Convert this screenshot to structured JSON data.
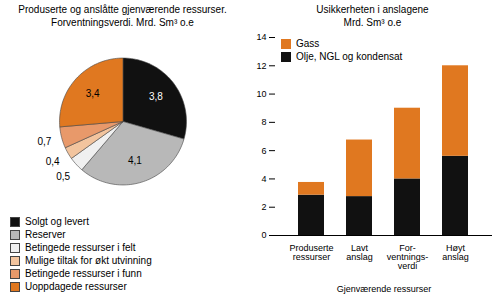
{
  "chart_data": [
    {
      "type": "pie",
      "title": "Produserte og anslåtte gjenværende ressurser.",
      "subtitle": "Forventningsverdi. Mrd. Sm³ o.e",
      "categories": [
        "Solgt og levert",
        "Reserver",
        "Betingede ressurser i felt",
        "Mulige tiltak for økt utvinning",
        "Betingede ressurser i funn",
        "Uoppdagede ressurser"
      ],
      "values": [
        3.8,
        4.1,
        0.5,
        0.4,
        0.7,
        3.4
      ],
      "value_labels": [
        "3,8",
        "4,1",
        "0,5",
        "0,4",
        "0,7",
        "3,4"
      ],
      "colors": [
        "#111111",
        "#b8b8b8",
        "#f0f0f0",
        "#f2c49e",
        "#e8996a",
        "#e07820"
      ],
      "data_labels": true,
      "legend": "bottom"
    },
    {
      "type": "bar",
      "title": "Usikkerheten i anslagene",
      "subtitle": "Mrd. Sm³ o.e",
      "categories": [
        "Produserte\nressurser",
        "Lavt\nanslag",
        "For-\nventnings-\nverdi",
        "Høyt\nanslag"
      ],
      "xlabel": "Gjenværende ressurser",
      "series": [
        {
          "name": "Olje, NGL og kondensat",
          "color": "#111111",
          "values": [
            2.85,
            2.75,
            4.0,
            5.6
          ]
        },
        {
          "name": "Gass",
          "color": "#e07820",
          "values": [
            0.9,
            4.0,
            5.0,
            6.4
          ]
        }
      ],
      "stacked": true,
      "ylim": [
        0,
        14
      ],
      "yticks": [
        0,
        2,
        4,
        6,
        8,
        10,
        12,
        14
      ],
      "legend": "upper left"
    }
  ]
}
